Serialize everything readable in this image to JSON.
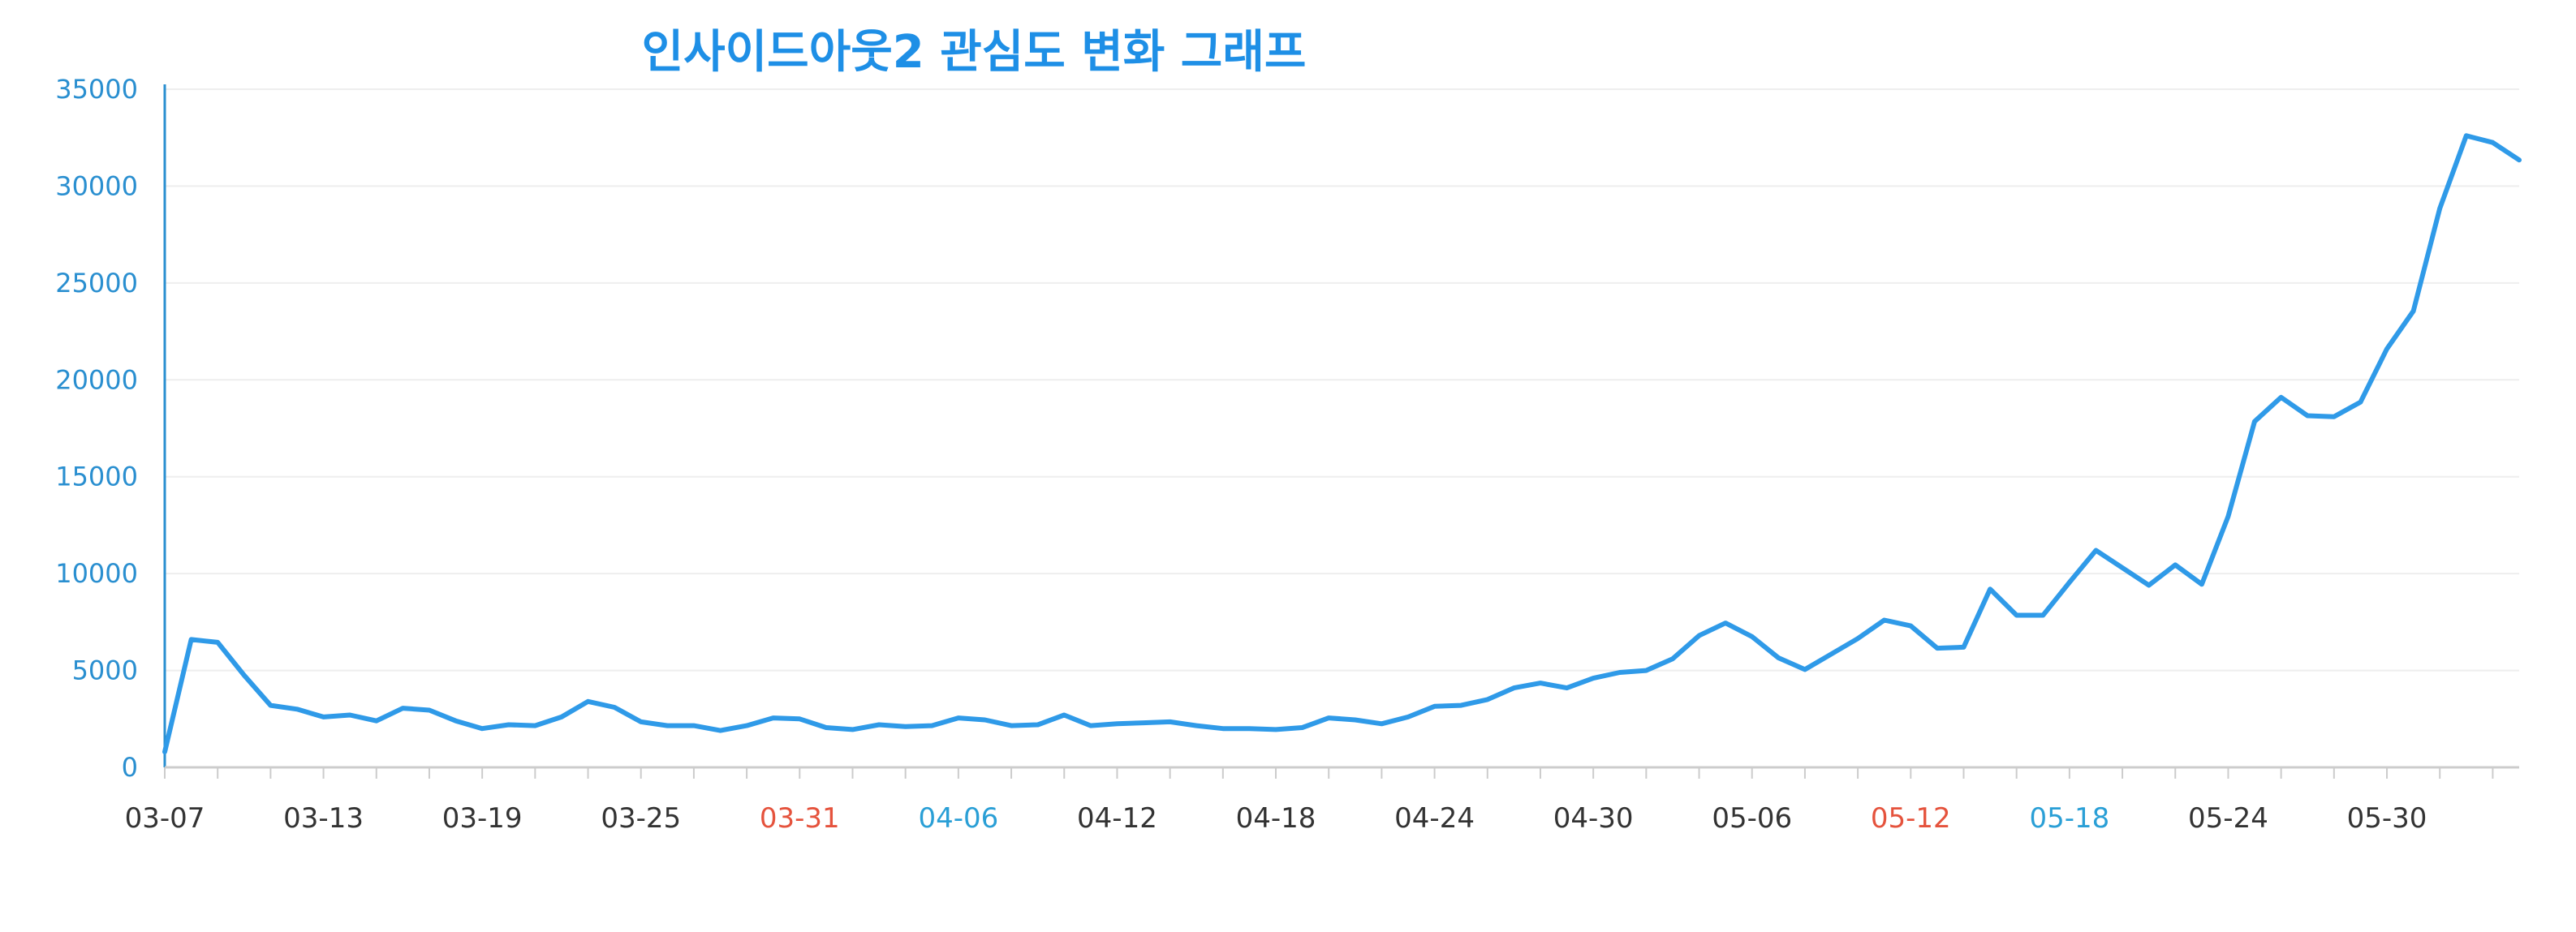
{
  "chart_data": {
    "type": "line",
    "title": "인사이드아웃2 관심도 변화 그래프",
    "xlabel": "",
    "ylabel": "",
    "ylim": [
      0,
      35000
    ],
    "yticks": [
      "0",
      "5000",
      "10000",
      "15000",
      "20000",
      "25000",
      "30000",
      "35000"
    ],
    "grid": true,
    "legend": "none",
    "xtick_labels": [
      {
        "label": "03-07",
        "color": "#333333"
      },
      {
        "label": "03-13",
        "color": "#333333"
      },
      {
        "label": "03-19",
        "color": "#333333"
      },
      {
        "label": "03-25",
        "color": "#333333"
      },
      {
        "label": "03-31",
        "color": "#e5533d"
      },
      {
        "label": "04-06",
        "color": "#2a9fd6"
      },
      {
        "label": "04-12",
        "color": "#333333"
      },
      {
        "label": "04-18",
        "color": "#333333"
      },
      {
        "label": "04-24",
        "color": "#333333"
      },
      {
        "label": "04-30",
        "color": "#333333"
      },
      {
        "label": "05-06",
        "color": "#333333"
      },
      {
        "label": "05-12",
        "color": "#e5533d"
      },
      {
        "label": "05-18",
        "color": "#2a9fd6"
      },
      {
        "label": "05-24",
        "color": "#333333"
      },
      {
        "label": "05-30",
        "color": "#333333"
      }
    ],
    "x": [
      "03-07",
      "03-08",
      "03-09",
      "03-10",
      "03-11",
      "03-12",
      "03-13",
      "03-14",
      "03-15",
      "03-16",
      "03-17",
      "03-18",
      "03-19",
      "03-20",
      "03-21",
      "03-22",
      "03-23",
      "03-24",
      "03-25",
      "03-26",
      "03-27",
      "03-28",
      "03-29",
      "03-30",
      "03-31",
      "04-01",
      "04-02",
      "04-03",
      "04-04",
      "04-05",
      "04-06",
      "04-07",
      "04-08",
      "04-09",
      "04-10",
      "04-11",
      "04-12",
      "04-13",
      "04-14",
      "04-15",
      "04-16",
      "04-17",
      "04-18",
      "04-19",
      "04-20",
      "04-21",
      "04-22",
      "04-23",
      "04-24",
      "04-25",
      "04-26",
      "04-27",
      "04-28",
      "04-29",
      "04-30",
      "05-01",
      "05-02",
      "05-03",
      "05-04",
      "05-05",
      "05-06",
      "05-07",
      "05-08",
      "05-09",
      "05-10",
      "05-11",
      "05-12",
      "05-13",
      "05-14",
      "05-15",
      "05-16",
      "05-17",
      "05-18",
      "05-19",
      "05-20",
      "05-21",
      "05-22",
      "05-23",
      "05-24",
      "05-25",
      "05-26",
      "05-27",
      "05-28",
      "05-29",
      "05-30",
      "05-31",
      "06-01",
      "06-02",
      "06-03",
      "06-04"
    ],
    "series": [
      {
        "name": "",
        "color": "#2f9ae8",
        "values": [
          800,
          6600,
          6450,
          4750,
          3200,
          3000,
          2600,
          2700,
          2400,
          3050,
          2950,
          2400,
          2000,
          2200,
          2150,
          2600,
          3400,
          3100,
          2350,
          2150,
          2150,
          1900,
          2150,
          2550,
          2500,
          2050,
          1950,
          2200,
          2100,
          2150,
          2550,
          2450,
          2150,
          2200,
          2700,
          2150,
          2250,
          2300,
          2350,
          2150,
          2000,
          2000,
          1950,
          2050,
          2550,
          2450,
          2250,
          2600,
          3150,
          3200,
          3500,
          4100,
          4350,
          4100,
          4600,
          4900,
          5000,
          5600,
          6800,
          7450,
          6750,
          5650,
          5050,
          5850,
          6650,
          7600,
          7300,
          6150,
          6200,
          9200,
          7850,
          7850,
          9550,
          11200,
          10300,
          9400,
          10450,
          9450,
          12950,
          17850,
          19100,
          18150,
          18100,
          18850,
          21600,
          23550,
          28850,
          32600,
          32250,
          31350
        ]
      }
    ]
  }
}
